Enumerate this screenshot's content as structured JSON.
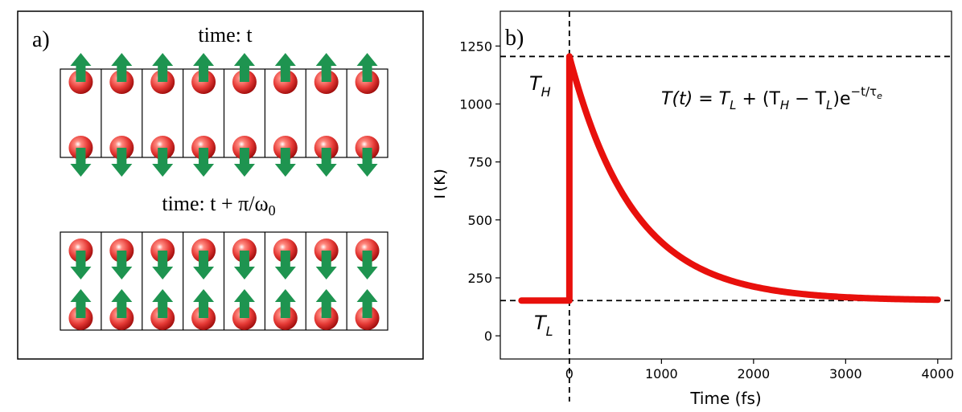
{
  "panel_a": {
    "label": "a)",
    "title_top": "time: t",
    "title_bottom_prefix": "time: t + π/ω",
    "title_bottom_subscript": "0",
    "cells_per_row": 8,
    "lattice_top": {
      "upper_row_spin": "up",
      "lower_row_spin": "down"
    },
    "lattice_bottom": {
      "upper_row_spin": "down",
      "lower_row_spin": "up"
    },
    "colors": {
      "atom": "#e53935",
      "arrow": "#1e9450",
      "frame": "#000000"
    }
  },
  "panel_b": {
    "label": "b)",
    "formula": {
      "lhs": "T(t) = T",
      "sub_L": "L",
      "middle": " + (T",
      "sub_H": "H",
      "minus": " − T",
      "sub_L2": "L",
      "close": ")e",
      "sup": "−t/τ",
      "sup_sub": "e"
    },
    "marker_high": {
      "text": "T",
      "sub": "H"
    },
    "marker_low": {
      "text": "T",
      "sub": "L"
    }
  },
  "chart_data": {
    "type": "line",
    "title": "",
    "xlabel": "Time (fs)",
    "ylabel": "T(K)",
    "xlim": [
      -750,
      4150
    ],
    "ylim": [
      -100,
      1400
    ],
    "xticks": [
      0,
      1000,
      2000,
      3000,
      4000
    ],
    "yticks": [
      0,
      250,
      500,
      750,
      1000,
      1250
    ],
    "series": [
      {
        "name": "T(t)",
        "color": "#e8100c",
        "T_L": 152,
        "T_H": 1205,
        "tau_e": 700,
        "t_start": -520,
        "t_step": 0,
        "t_end": 4000
      }
    ],
    "reference_lines": [
      {
        "axis": "y",
        "value": 1205,
        "label": "T_H",
        "style": "dashed"
      },
      {
        "axis": "y",
        "value": 152,
        "label": "T_L",
        "style": "dashed"
      },
      {
        "axis": "x",
        "value": 0,
        "style": "dashed"
      }
    ]
  }
}
